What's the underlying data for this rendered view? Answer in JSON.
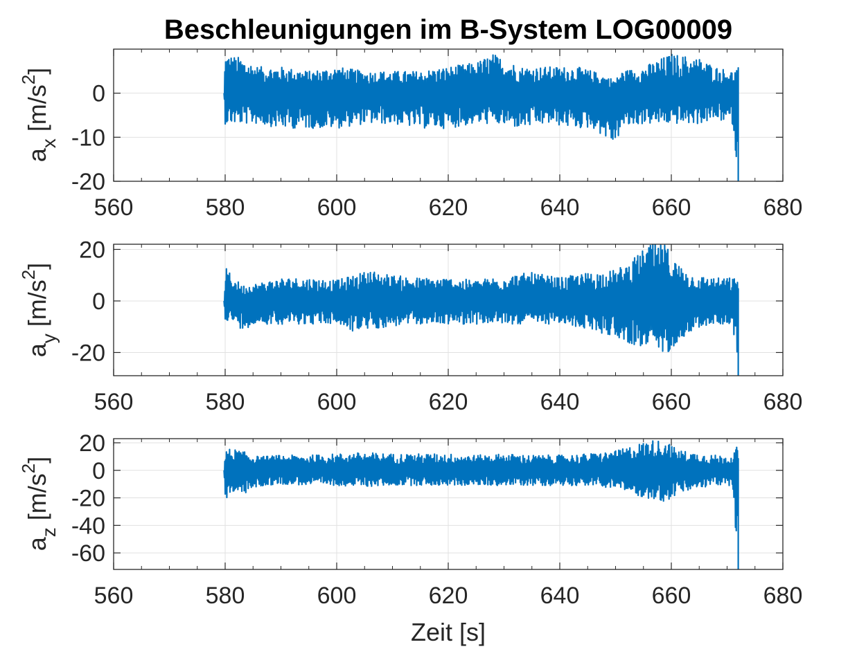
{
  "title": "Beschleunigungen im B-System LOG00009",
  "xlabel": "Zeit [s]",
  "colors": {
    "series": "#0072BD",
    "grid": "#e1e1e1",
    "axis": "#262626"
  },
  "chart_data": [
    {
      "type": "line",
      "ylabel": {
        "base": "a",
        "sub": "x",
        "unit": " [m/s",
        "sup": "2",
        "close": "]"
      },
      "xlim": [
        560,
        680
      ],
      "ylim": [
        -20,
        10
      ],
      "xticks": [
        560,
        580,
        600,
        620,
        640,
        660,
        680
      ],
      "xtick_labels": [
        "560",
        "580",
        "600",
        "620",
        "640",
        "660",
        "680"
      ],
      "yticks": [
        -20,
        -10,
        0
      ],
      "ytick_labels": [
        "-20",
        "-10",
        "0"
      ],
      "grid": true,
      "series": [
        {
          "t": [
            579.8,
            580,
            583,
            586,
            590,
            595,
            600,
            605,
            610,
            615,
            620,
            625,
            628,
            633,
            638,
            643,
            646,
            650,
            651,
            655,
            660,
            665,
            668,
            671,
            672
          ],
          "upper": [
            0,
            9,
            8,
            6,
            6,
            5,
            6,
            5,
            5,
            5,
            6,
            7,
            9,
            6,
            6,
            6,
            5,
            3,
            5,
            6,
            9,
            8,
            6,
            5,
            6
          ],
          "lower": [
            0,
            -7,
            -7,
            -7,
            -8,
            -8,
            -8,
            -7,
            -7,
            -8,
            -8,
            -7,
            -7,
            -8,
            -7,
            -8,
            -8,
            -12,
            -8,
            -7,
            -7,
            -7,
            -6,
            -7,
            -20
          ]
        }
      ]
    },
    {
      "type": "line",
      "ylabel": {
        "base": "a",
        "sub": "y",
        "unit": " [m/s",
        "sup": "2",
        "close": "]"
      },
      "xlim": [
        560,
        680
      ],
      "ylim": [
        -29,
        22
      ],
      "xticks": [
        560,
        580,
        600,
        620,
        640,
        660,
        680
      ],
      "xtick_labels": [
        "560",
        "580",
        "600",
        "620",
        "640",
        "660",
        "680"
      ],
      "yticks": [
        -20,
        0,
        20
      ],
      "ytick_labels": [
        "-20",
        "0",
        "20"
      ],
      "grid": true,
      "series": [
        {
          "t": [
            579.8,
            580,
            583,
            586,
            590,
            595,
            600,
            603,
            606,
            610,
            615,
            620,
            625,
            630,
            635,
            640,
            645,
            650,
            653,
            656,
            659,
            661,
            664,
            668,
            671,
            672
          ],
          "upper": [
            0,
            13,
            6,
            7,
            9,
            9,
            8,
            10,
            12,
            10,
            9,
            9,
            8,
            10,
            11,
            9,
            11,
            12,
            16,
            22,
            22,
            15,
            10,
            9,
            9,
            9
          ],
          "lower": [
            0,
            -7,
            -11,
            -9,
            -9,
            -9,
            -9,
            -12,
            -11,
            -10,
            -9,
            -9,
            -9,
            -9,
            -9,
            -9,
            -11,
            -14,
            -17,
            -19,
            -21,
            -16,
            -11,
            -9,
            -9,
            -29
          ]
        }
      ]
    },
    {
      "type": "line",
      "ylabel": {
        "base": "a",
        "sub": "z",
        "unit": " [m/s",
        "sup": "2",
        "close": "]"
      },
      "xlim": [
        560,
        680
      ],
      "ylim": [
        -72,
        23
      ],
      "xticks": [
        560,
        580,
        600,
        620,
        640,
        660,
        680
      ],
      "xtick_labels": [
        "560",
        "580",
        "600",
        "620",
        "640",
        "660",
        "680"
      ],
      "yticks": [
        -60,
        -40,
        -20,
        0,
        20
      ],
      "ytick_labels": [
        "-60",
        "-40",
        "-20",
        "0",
        "20"
      ],
      "grid": true,
      "series": [
        {
          "t": [
            579.8,
            580,
            581,
            583,
            586,
            590,
            595,
            600,
            605,
            610,
            615,
            620,
            625,
            630,
            635,
            640,
            645,
            650,
            653,
            656,
            659,
            661,
            664,
            668,
            671,
            672
          ],
          "upper": [
            0,
            14,
            16,
            14,
            10,
            11,
            11,
            12,
            13,
            12,
            12,
            12,
            11,
            12,
            11,
            11,
            12,
            14,
            18,
            22,
            22,
            15,
            13,
            11,
            11,
            19
          ],
          "lower": [
            0,
            -22,
            -16,
            -18,
            -12,
            -10,
            -11,
            -11,
            -12,
            -11,
            -11,
            -11,
            -11,
            -11,
            -11,
            -11,
            -11,
            -13,
            -17,
            -21,
            -23,
            -18,
            -14,
            -11,
            -11,
            -72
          ]
        }
      ]
    }
  ]
}
